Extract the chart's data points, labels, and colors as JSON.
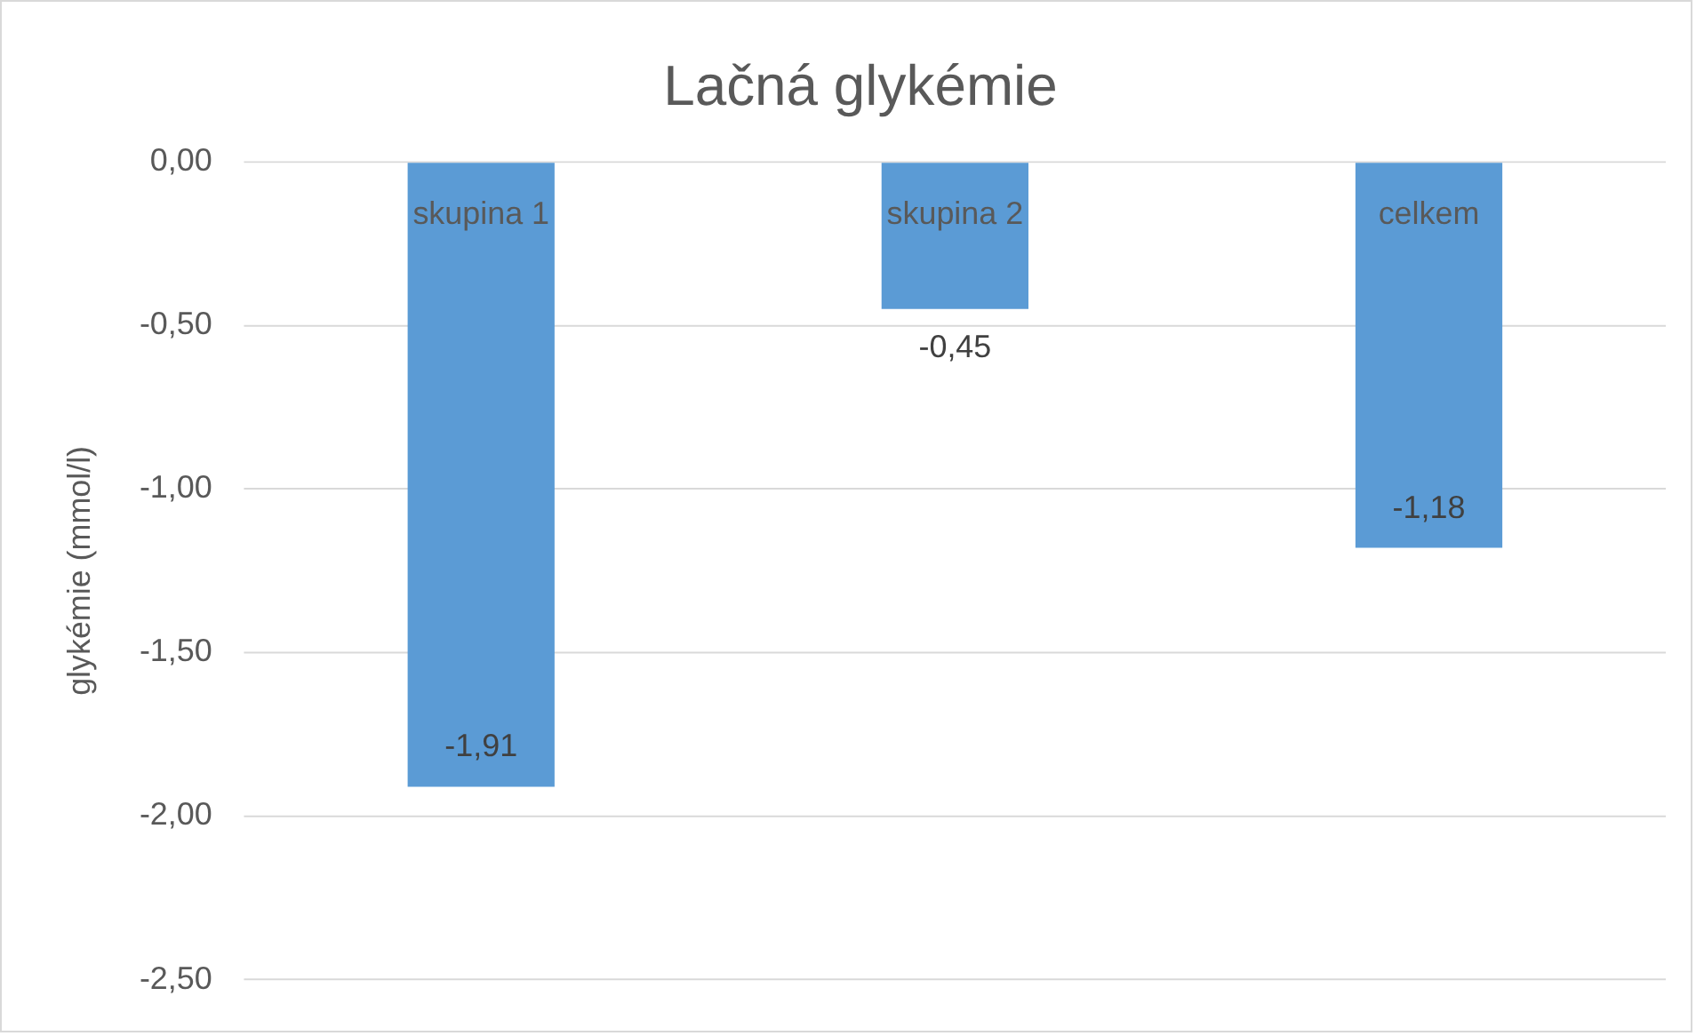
{
  "chart_data": {
    "type": "bar",
    "title": "Lačná glykémie",
    "ylabel": "glykémie (mmol/l)",
    "categories": [
      "skupina 1",
      "skupina 2",
      "celkem"
    ],
    "values": [
      -1.91,
      -0.45,
      -1.18
    ],
    "color": "#5b9bd5",
    "value_labels": [
      "-1,91",
      "-0,45",
      "-1,18"
    ],
    "ylim": [
      -2.5,
      0
    ],
    "yticks": [
      {
        "value": 0,
        "label": "0,00"
      },
      {
        "value": -0.5,
        "label": "-0,50"
      },
      {
        "value": -1,
        "label": "-1,00"
      },
      {
        "value": -1.5,
        "label": "-1,50"
      },
      {
        "value": -2,
        "label": "-2,00"
      },
      {
        "value": -2.5,
        "label": "-2,50"
      }
    ],
    "grid": "y",
    "legend": false
  }
}
